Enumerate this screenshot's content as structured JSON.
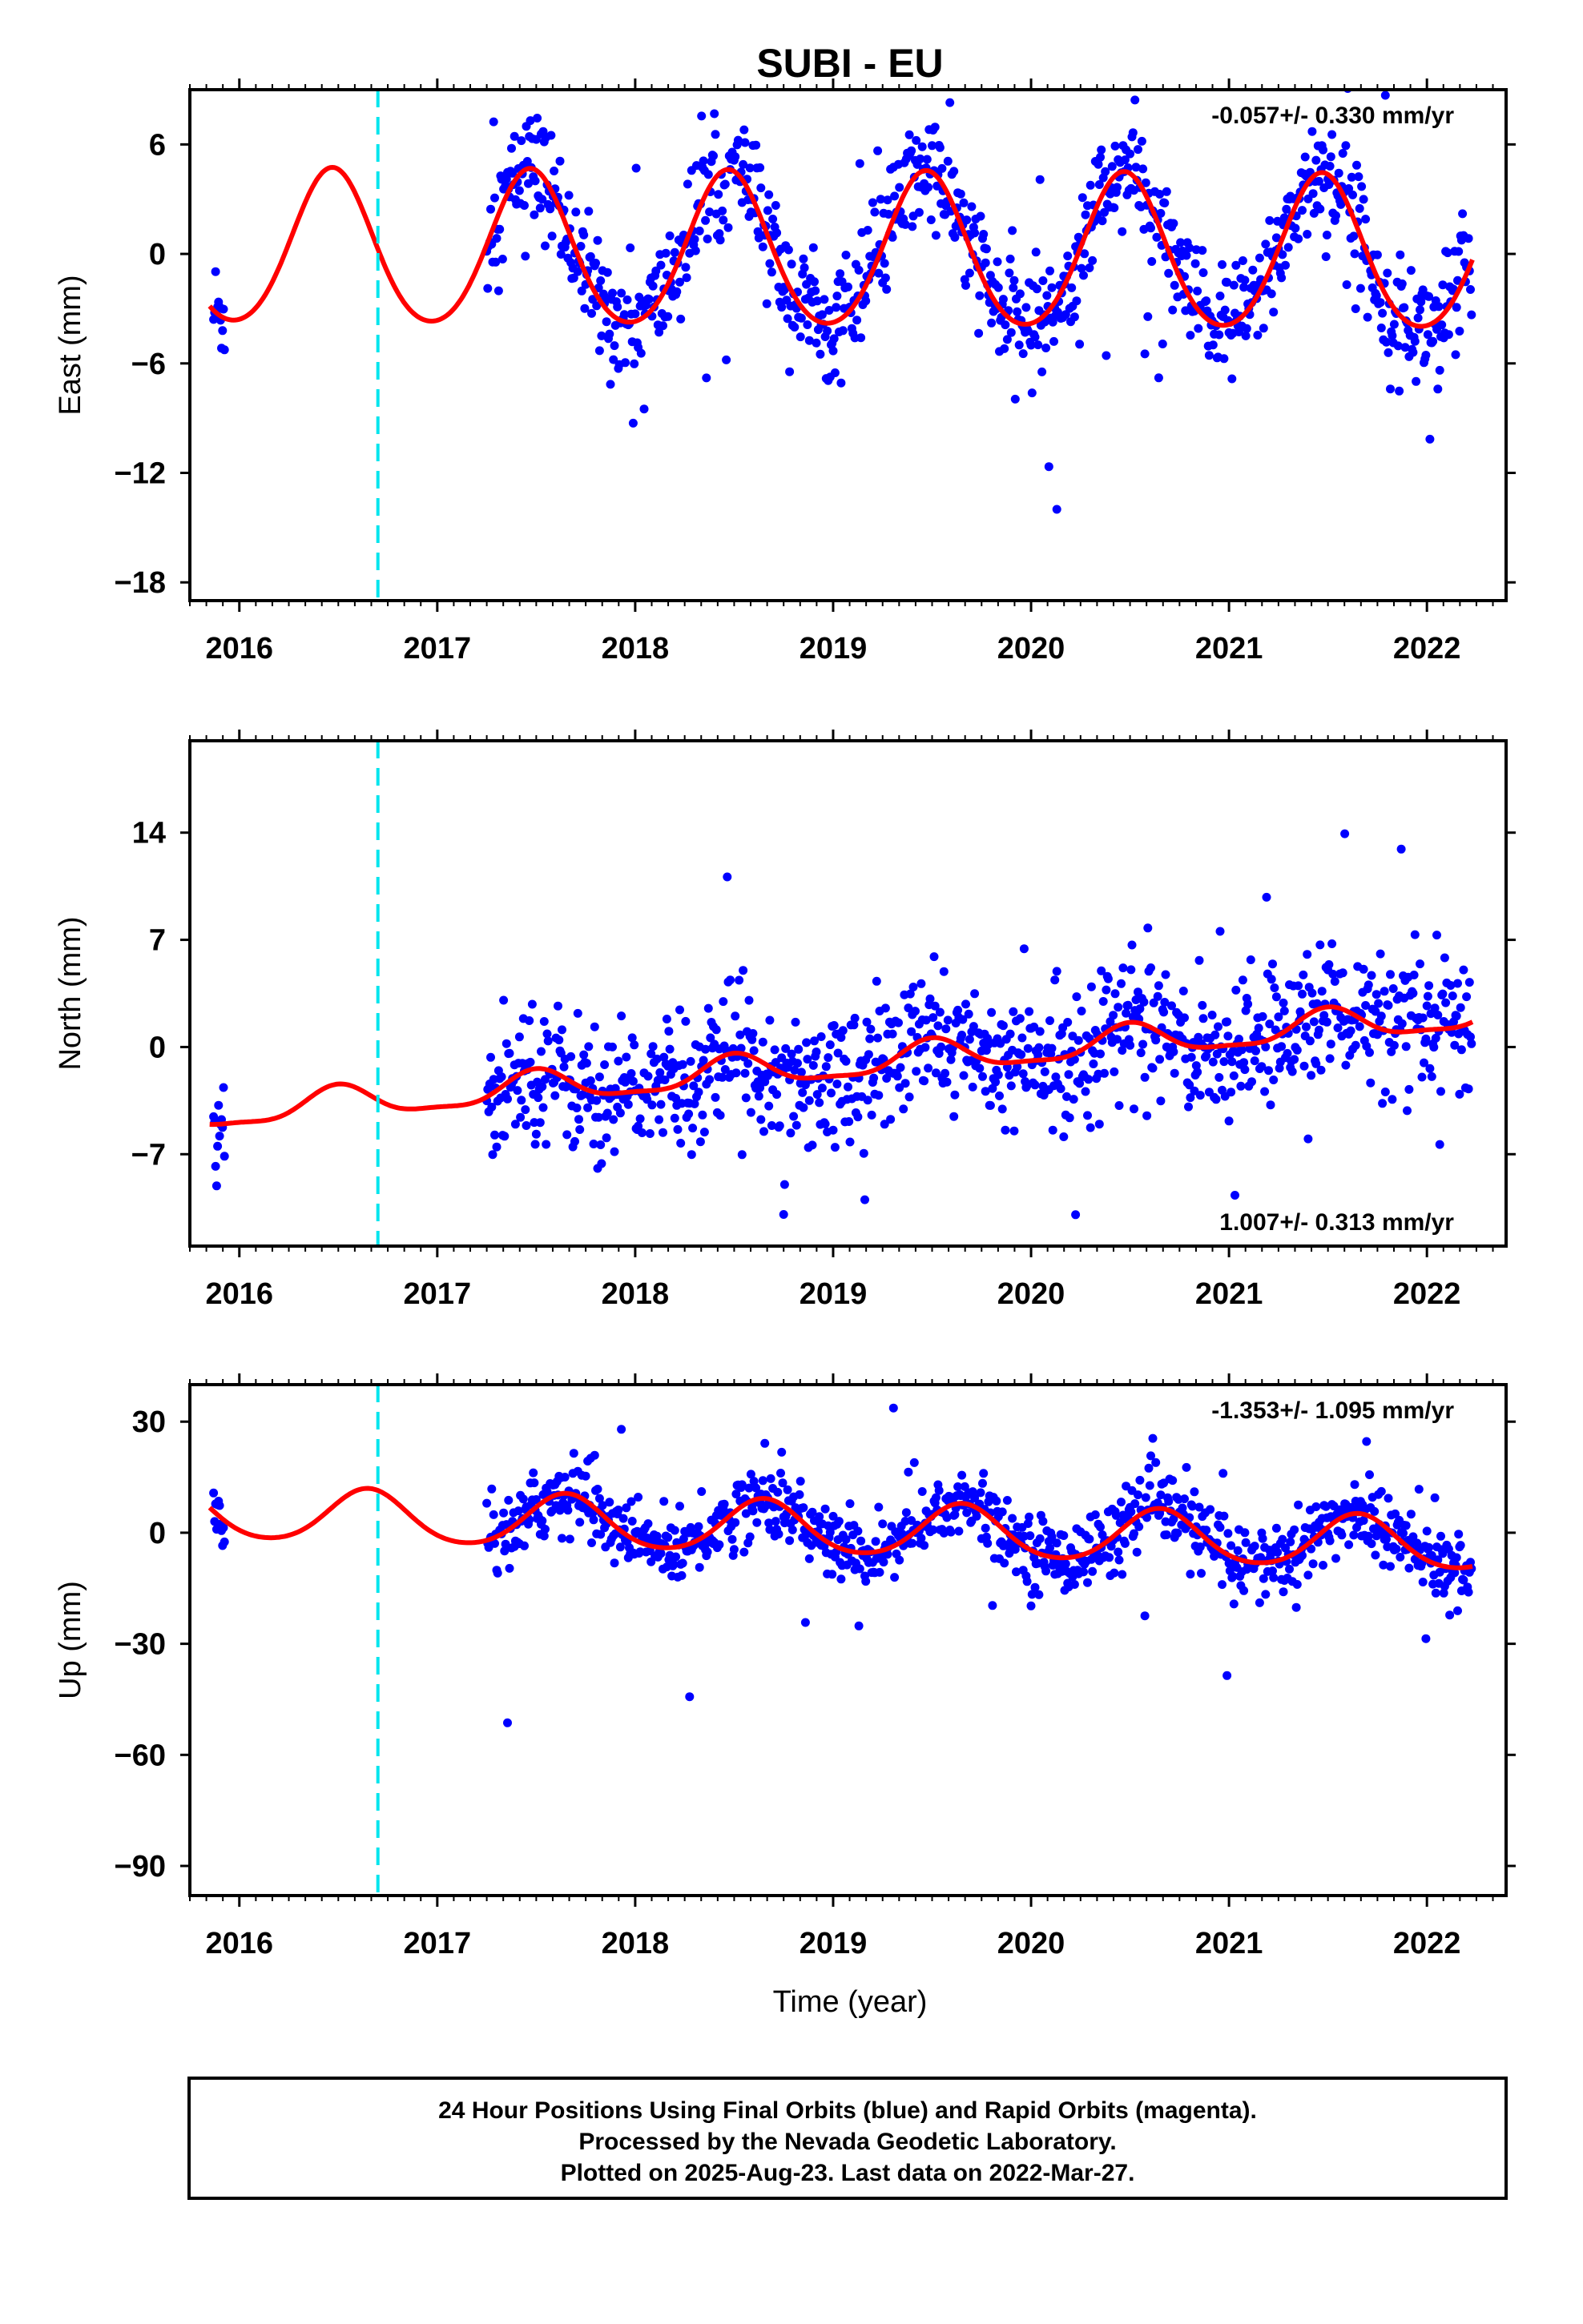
{
  "title": "SUBI - EU",
  "xlabel": "Time (year)",
  "footer": [
    "24 Hour Positions Using Final Orbits (blue) and Rapid Orbits (magenta).",
    "Processed by the Nevada Geodetic Laboratory.",
    "Plotted on 2025-Aug-23. Last data on 2022-Mar-27."
  ],
  "colors": {
    "points": "#0000ff",
    "model": "#ff0000",
    "break": "#00e5ee"
  },
  "chart_data": [
    {
      "type": "scatter",
      "ylabel": "East (mm)",
      "rate_text": "-0.057+/- 0.330 mm/yr",
      "rate_position": "top-right",
      "xlim": [
        2015.75,
        2022.4
      ],
      "ylim": [
        -19,
        9
      ],
      "xticks": [
        2016,
        2017,
        2018,
        2019,
        2020,
        2021,
        2022
      ],
      "yticks": [
        6,
        0,
        -6,
        -12,
        -18
      ],
      "break_year": 2016.7,
      "data_start": 2015.87,
      "gap": [
        2015.93,
        2017.25
      ],
      "data_end": 2022.23,
      "model": {
        "offset": 0.0,
        "trend": -0.057,
        "amp_annual": 4.2,
        "peak_phase": 0.47,
        "amp_semi": 0.4,
        "noise_sd": 1.6
      }
    },
    {
      "type": "scatter",
      "ylabel": "North (mm)",
      "rate_text": "1.007+/- 0.313 mm/yr",
      "rate_position": "bottom-right",
      "xlim": [
        2015.75,
        2022.4
      ],
      "ylim": [
        -13,
        20
      ],
      "xticks": [
        2016,
        2017,
        2018,
        2019,
        2020,
        2021,
        2022
      ],
      "yticks": [
        14,
        7,
        0,
        -7
      ],
      "break_year": 2016.7,
      "data_start": 2015.87,
      "gap": [
        2015.93,
        2017.25
      ],
      "data_end": 2022.23,
      "model": {
        "offset": -1.2,
        "trend": 1.007,
        "amp_annual": 1.0,
        "peak_phase": 0.5,
        "amp_semi": 0.3,
        "noise_sd": 2.2
      }
    },
    {
      "type": "scatter",
      "ylabel": "Up (mm)",
      "rate_text": "-1.353+/- 1.095 mm/yr",
      "rate_position": "top-right",
      "xlim": [
        2015.75,
        2022.4
      ],
      "ylim": [
        -98,
        40
      ],
      "xticks": [
        2016,
        2017,
        2018,
        2019,
        2020,
        2021,
        2022
      ],
      "yticks": [
        30,
        0,
        -30,
        -60,
        -90
      ],
      "break_year": 2016.7,
      "data_start": 2015.87,
      "gap": [
        2015.93,
        2017.25
      ],
      "data_end": 2022.23,
      "model": {
        "offset": 1.0,
        "trend": -1.353,
        "amp_annual": 7.0,
        "peak_phase": 0.65,
        "amp_semi": 0.8,
        "noise_sd": 5.0
      }
    }
  ]
}
